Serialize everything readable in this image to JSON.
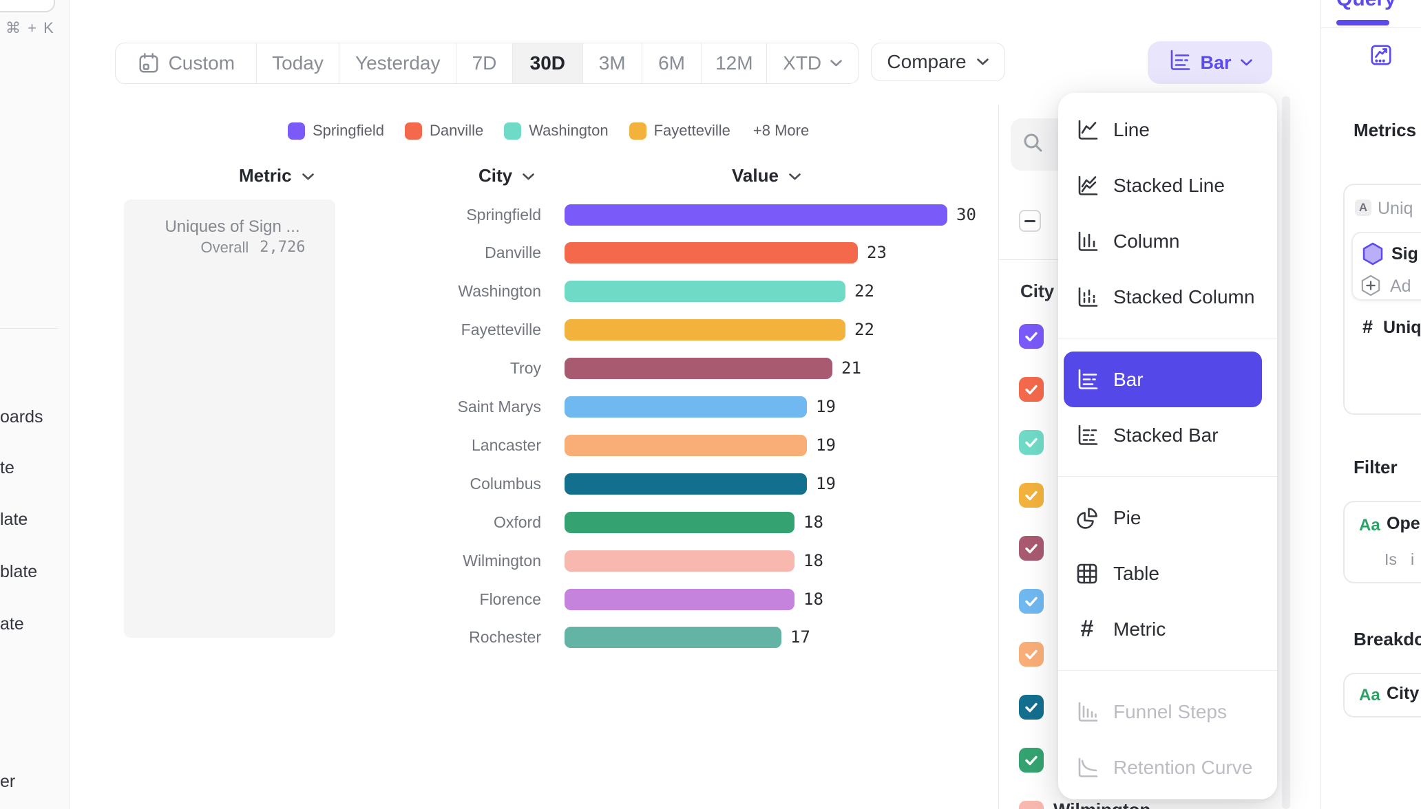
{
  "left_sidebar": {
    "shortcut": "⌘ + K",
    "items": [
      "oards",
      "te",
      "late",
      "blate",
      "ate",
      "er"
    ]
  },
  "toolbar": {
    "segments": [
      {
        "label": "Custom",
        "icon": "calendar"
      },
      {
        "label": "Today"
      },
      {
        "label": "Yesterday"
      },
      {
        "label": "7D"
      },
      {
        "label": "30D",
        "selected": true
      },
      {
        "label": "3M"
      },
      {
        "label": "6M"
      },
      {
        "label": "12M"
      },
      {
        "label": "XTD",
        "chevron": true
      }
    ],
    "compare_label": "Compare"
  },
  "chart_type_button": {
    "label": "Bar"
  },
  "legend": {
    "items": [
      {
        "label": "Springfield",
        "color": "#7A5AF8"
      },
      {
        "label": "Danville",
        "color": "#F4694B"
      },
      {
        "label": "Washington",
        "color": "#6FDBC7"
      },
      {
        "label": "Fayetteville",
        "color": "#F2B23C"
      }
    ],
    "more_label": "+8 More"
  },
  "table_headers": {
    "metric": "Metric",
    "city": "City",
    "value": "Value"
  },
  "metric_card": {
    "title": "Uniques of Sign ...",
    "overall_label": "Overall",
    "overall_value": "2,726"
  },
  "chart_data": {
    "type": "bar",
    "title": "",
    "xlabel": "Value",
    "ylabel": "City",
    "xlim": [
      0,
      30
    ],
    "categories": [
      "Springfield",
      "Danville",
      "Washington",
      "Fayetteville",
      "Troy",
      "Saint Marys",
      "Lancaster",
      "Columbus",
      "Oxford",
      "Wilmington",
      "Florence",
      "Rochester"
    ],
    "values": [
      30,
      23,
      22,
      22,
      21,
      19,
      19,
      19,
      18,
      18,
      18,
      17
    ],
    "colors": [
      "#7A5AF8",
      "#F4694B",
      "#6FDBC7",
      "#F2B23C",
      "#A85A70",
      "#70B8F0",
      "#F9AE78",
      "#136F8E",
      "#35A371",
      "#F8B8AF",
      "#C583DE",
      "#63B4A4"
    ]
  },
  "breakdown_panel": {
    "column_label": "City",
    "checkbox_colors": [
      "#7A5AF8",
      "#F4694B",
      "#6FDBC7",
      "#F2B23C",
      "#A85A70",
      "#70B8F0",
      "#F9AE78",
      "#136F8E",
      "#35A371",
      "#F8B8AF"
    ],
    "bottom_item_label": "Wilmington"
  },
  "chart_menu": {
    "items": [
      {
        "label": "Line",
        "icon": "line"
      },
      {
        "label": "Stacked Line",
        "icon": "stacked-line"
      },
      {
        "label": "Column",
        "icon": "column"
      },
      {
        "label": "Stacked Column",
        "icon": "stacked-column"
      },
      {
        "divider": true
      },
      {
        "label": "Bar",
        "icon": "bar",
        "selected": true
      },
      {
        "label": "Stacked Bar",
        "icon": "stacked-bar"
      },
      {
        "divider": true
      },
      {
        "label": "Pie",
        "icon": "pie"
      },
      {
        "label": "Table",
        "icon": "table"
      },
      {
        "label": "Metric",
        "icon": "metric"
      },
      {
        "divider": true
      },
      {
        "label": "Funnel Steps",
        "icon": "funnel",
        "disabled": true
      },
      {
        "label": "Retention Curve",
        "icon": "retention",
        "disabled": true
      }
    ]
  },
  "query_panel": {
    "tab": "Query",
    "metrics_label": "Metrics",
    "metric_letter": "A",
    "metric_name_fragment": "Uniq",
    "event_fragment": "Sig",
    "add_fragment": "Ad",
    "hash": "#",
    "uniques_fragment": "Uniqu",
    "filter_label": "Filter",
    "aa": "Aa",
    "filter_name_fragment": "Ope",
    "filter_operator": "Is",
    "filter_value_fragment": "i",
    "breakdown_label": "Breakdo",
    "breakdown_name": "City"
  }
}
